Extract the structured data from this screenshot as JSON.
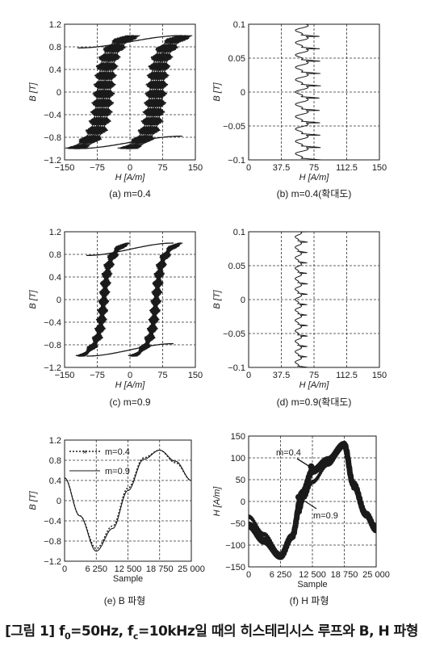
{
  "caption": "[그림 1] f₀=50Hz, fc=10kHz일 때의 히스테리시스 루프와 B, H 파형",
  "caption_parts": {
    "a": "[그림 1] f",
    "a_sub": "0",
    "b": "=50Hz, f",
    "b_sub": "c",
    "c": "=10kHz일 때의 히스테리시스 루프와 B, H 파형"
  },
  "colors": {
    "trace": "#1a1a1a",
    "grid": "#333333",
    "frame": "#1a1a1a"
  },
  "chart_data": [
    {
      "id": "a",
      "type": "line",
      "subtitle": "(a) m=0.4",
      "xlabel": "H [A/m]",
      "ylabel": "B [T]",
      "xlim": [
        -150,
        150
      ],
      "ylim": [
        -1.2,
        1.2
      ],
      "xticks": [
        -150,
        -75,
        0,
        75,
        150
      ],
      "xtick_labels": [
        "−150",
        "−75",
        "0",
        "75",
        "150"
      ],
      "yticks": [
        -1.2,
        -0.8,
        -0.4,
        0,
        0.4,
        0.8,
        1.2
      ],
      "ytick_labels": [
        "−1.2",
        "−0.8",
        "−0.4",
        "0",
        "0.4",
        "0.8",
        "1.2"
      ],
      "grid": true,
      "series": [
        {
          "kind": "hysteresis",
          "Hc": 60,
          "Hs": 120,
          "Bs": 1.0,
          "ripple": 12,
          "band": 14
        }
      ]
    },
    {
      "id": "b",
      "type": "line",
      "subtitle": "(b) m=0.4(확대도)",
      "xlabel": "H [A/m]",
      "ylabel": "B [T]",
      "xlim": [
        0,
        150
      ],
      "ylim": [
        -0.1,
        0.1
      ],
      "xticks": [
        0,
        37.5,
        75,
        112.5,
        150
      ],
      "xtick_labels": [
        "0",
        "37.5",
        "75",
        "112.5",
        "150"
      ],
      "yticks": [
        -0.1,
        -0.05,
        0,
        0.05,
        0.1
      ],
      "ytick_labels": [
        "−0.1",
        "−0.05",
        "0",
        "0.05",
        "0.1"
      ],
      "grid": true,
      "series": [
        {
          "kind": "zoom",
          "Hcenter": 63,
          "Hspread": 20,
          "cycles": 11
        }
      ]
    },
    {
      "id": "c",
      "type": "line",
      "subtitle": "(c) m=0.9",
      "xlabel": "H [A/m]",
      "ylabel": "B [T]",
      "xlim": [
        -150,
        150
      ],
      "ylim": [
        -1.2,
        1.2
      ],
      "xticks": [
        -150,
        -75,
        0,
        75,
        150
      ],
      "xtick_labels": [
        "−150",
        "−75",
        "0",
        "75",
        "150"
      ],
      "yticks": [
        -1.2,
        -0.8,
        -0.4,
        0,
        0.4,
        0.8,
        1.2
      ],
      "ytick_labels": [
        "−1.2",
        "−0.8",
        "−0.4",
        "0",
        "0.4",
        "0.8",
        "1.2"
      ],
      "grid": true,
      "series": [
        {
          "kind": "hysteresis",
          "Hc": 60,
          "Hs": 100,
          "Bs": 1.0,
          "ripple": 9,
          "band": 4
        }
      ]
    },
    {
      "id": "d",
      "type": "line",
      "subtitle": "(d) m=0.9(확대도)",
      "xlabel": "H [A/m]",
      "ylabel": "B [T]",
      "xlim": [
        0,
        150
      ],
      "ylim": [
        -0.1,
        0.1
      ],
      "xticks": [
        0,
        37.5,
        75,
        112.5,
        150
      ],
      "xtick_labels": [
        "0",
        "37.5",
        "75",
        "112.5",
        "150"
      ],
      "yticks": [
        -0.1,
        -0.05,
        0,
        0.05,
        0.1
      ],
      "ytick_labels": [
        "−0.1",
        "−0.05",
        "0",
        "0.05",
        "0.1"
      ],
      "grid": true,
      "series": [
        {
          "kind": "zoom",
          "Hcenter": 58,
          "Hspread": 10,
          "cycles": 13
        }
      ]
    },
    {
      "id": "e",
      "type": "line",
      "subtitle": "(e) B 파형",
      "xlabel": "Sample",
      "ylabel": "B [T]",
      "xlim": [
        0,
        25000
      ],
      "ylim": [
        -1.2,
        1.2
      ],
      "xticks": [
        0,
        6250,
        12500,
        18750,
        25000
      ],
      "xtick_labels": [
        "0",
        "6 250",
        "12 500",
        "18 750",
        "25 000"
      ],
      "yticks": [
        -1.2,
        -0.8,
        -0.4,
        0,
        0.4,
        0.8,
        1.2
      ],
      "ytick_labels": [
        "−1.2",
        "−0.8",
        "−0.4",
        "0",
        "0.4",
        "0.8",
        "1.2"
      ],
      "grid": true,
      "legend": [
        "m=0.4",
        "m=0.9"
      ],
      "series": [
        {
          "name": "m=0.4",
          "style": "dotted-x",
          "kind": "bwave",
          "points": [
            [
              0,
              0.45
            ],
            [
              3000,
              -0.3
            ],
            [
              6250,
              -0.95
            ],
            [
              9500,
              -0.5
            ],
            [
              12500,
              0.25
            ],
            [
              15600,
              0.85
            ],
            [
              18750,
              1.0
            ],
            [
              21900,
              0.75
            ],
            [
              25000,
              0.4
            ]
          ]
        },
        {
          "name": "m=0.9",
          "style": "solid",
          "kind": "bwave",
          "points": [
            [
              0,
              0.45
            ],
            [
              3000,
              -0.3
            ],
            [
              6250,
              -1.0
            ],
            [
              9500,
              -0.55
            ],
            [
              12500,
              0.2
            ],
            [
              15600,
              0.82
            ],
            [
              18750,
              1.0
            ],
            [
              21900,
              0.78
            ],
            [
              25000,
              0.4
            ]
          ]
        }
      ]
    },
    {
      "id": "f",
      "type": "line",
      "subtitle": "(f) H 파형",
      "xlabel": "Sample",
      "ylabel": "H [A/m]",
      "xlim": [
        0,
        25000
      ],
      "ylim": [
        -150,
        150
      ],
      "xticks": [
        0,
        6250,
        12500,
        18750,
        25000
      ],
      "xtick_labels": [
        "0",
        "6 250",
        "12 500",
        "18 750",
        "25 000"
      ],
      "yticks": [
        -150,
        -100,
        -50,
        0,
        50,
        100,
        150
      ],
      "ytick_labels": [
        "−150",
        "−100",
        "−50",
        "0",
        "50",
        "100",
        "150"
      ],
      "grid": true,
      "annotations": [
        {
          "text": "m=0.4",
          "at": [
            11000,
            80
          ]
        },
        {
          "text": "m=0.9",
          "at": [
            9800,
            10
          ]
        }
      ],
      "series": [
        {
          "name": "m=0.4",
          "kind": "hwave",
          "thick": 7,
          "points": [
            [
              0,
              -55
            ],
            [
              3000,
              -90
            ],
            [
              6250,
              -125
            ],
            [
              8500,
              -80
            ],
            [
              10500,
              20
            ],
            [
              12500,
              70
            ],
            [
              15600,
              95
            ],
            [
              18750,
              130
            ],
            [
              20500,
              40
            ],
            [
              23000,
              -30
            ],
            [
              25000,
              -65
            ]
          ]
        },
        {
          "name": "m=0.9",
          "kind": "hwave",
          "thick": 3,
          "points": [
            [
              0,
              -35
            ],
            [
              3000,
              -75
            ],
            [
              6250,
              -120
            ],
            [
              8500,
              -85
            ],
            [
              10000,
              -25
            ],
            [
              11000,
              10
            ],
            [
              12500,
              45
            ],
            [
              15600,
              85
            ],
            [
              18750,
              128
            ],
            [
              20500,
              30
            ],
            [
              23000,
              -35
            ],
            [
              25000,
              -55
            ]
          ]
        }
      ]
    }
  ]
}
